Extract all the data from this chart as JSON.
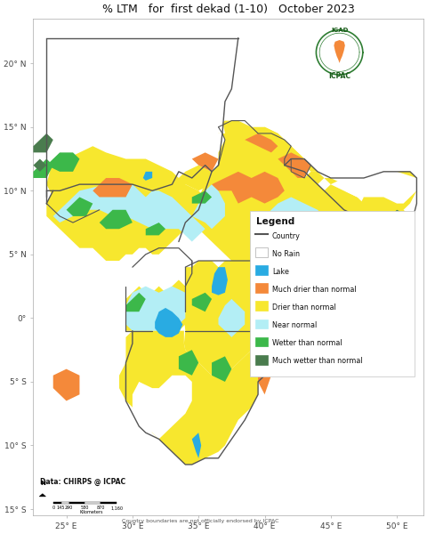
{
  "title": "% LTM   for  first dekad (1-10)   October 2023",
  "title_fontsize": 9.0,
  "background_color": "#ffffff",
  "fig_width": 4.8,
  "fig_height": 6.0,
  "dpi": 100,
  "xlim": [
    22.5,
    52.0
  ],
  "ylim": [
    -15.5,
    23.5
  ],
  "xticks": [
    25,
    30,
    35,
    40,
    45,
    50
  ],
  "yticks": [
    20,
    15,
    10,
    5,
    0,
    -5,
    -10,
    -15
  ],
  "legend_title": "Legend",
  "legend_items": [
    {
      "label": "Country",
      "color": "#555555",
      "type": "line"
    },
    {
      "label": "No Rain",
      "color": "#ffffff",
      "type": "patch",
      "edge": "#aaaaaa"
    },
    {
      "label": "Lake",
      "color": "#29abe2",
      "type": "patch"
    },
    {
      "label": "Much drier than normal",
      "color": "#f4893a",
      "type": "patch"
    },
    {
      "label": "Drier than normal",
      "color": "#f7e72e",
      "type": "patch"
    },
    {
      "label": "Near normal",
      "color": "#b3eef5",
      "type": "patch"
    },
    {
      "label": "Wetter than normal",
      "color": "#3cb84a",
      "type": "patch"
    },
    {
      "label": "Much wetter than normal",
      "color": "#4a7c4e",
      "type": "patch"
    }
  ],
  "data_source": "Data: CHIRPS @ ICPAC",
  "disclaimer": "Country boundaries are not officially endorsed by ICPAC",
  "colors": {
    "much_drier": "#f4893a",
    "drier": "#f7e72e",
    "near_normal": "#b3eef5",
    "wetter": "#3cb84a",
    "much_wetter": "#4a7c4e",
    "lake": "#29abe2",
    "no_rain": "#ffffff",
    "country_line": "#555555",
    "outer_line": "#444444"
  }
}
